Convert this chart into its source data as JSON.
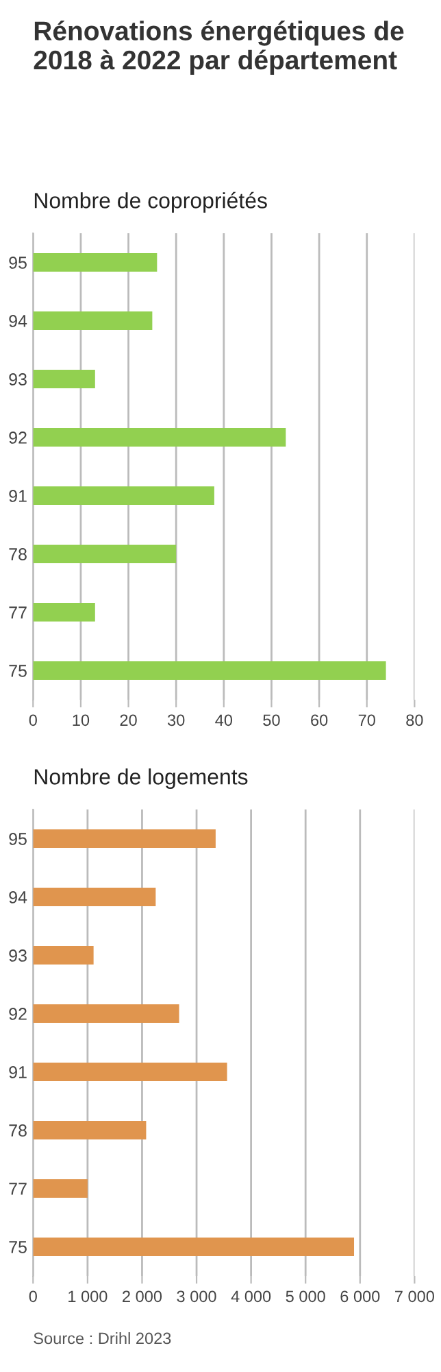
{
  "chart_data": [
    {
      "type": "bar",
      "orientation": "horizontal",
      "title": "Rénovations énergétiques de 2018 à 2022 par département",
      "subtitle": "Nombre de copropriétés",
      "categories": [
        "95",
        "94",
        "93",
        "92",
        "91",
        "78",
        "77",
        "75"
      ],
      "values": [
        26,
        25,
        13,
        53,
        38,
        30,
        13,
        74
      ],
      "color": "#92d050",
      "xlim": [
        0,
        80
      ],
      "xticks": [
        0,
        10,
        20,
        30,
        40,
        50,
        60,
        70,
        80
      ],
      "grid": "x"
    },
    {
      "type": "bar",
      "orientation": "horizontal",
      "subtitle": "Nombre de logements",
      "categories": [
        "95",
        "94",
        "93",
        "92",
        "91",
        "78",
        "77",
        "75"
      ],
      "values": [
        3350,
        2250,
        1110,
        2680,
        3560,
        2075,
        1000,
        5890
      ],
      "color": "#e0954e",
      "xlim": [
        0,
        7000
      ],
      "xticks": [
        0,
        {
          "value": 1000,
          "label": "1 000"
        },
        {
          "value": 2000,
          "label": "2 000"
        },
        {
          "value": 3000,
          "label": "3 000"
        },
        {
          "value": 4000,
          "label": "4 000"
        },
        {
          "value": 5000,
          "label": "5 000"
        },
        {
          "value": 6000,
          "label": "6 000"
        },
        {
          "value": 7000,
          "label": "7 000"
        }
      ],
      "grid": "x",
      "annotations": [
        "Source : Drihl 2023"
      ]
    }
  ]
}
